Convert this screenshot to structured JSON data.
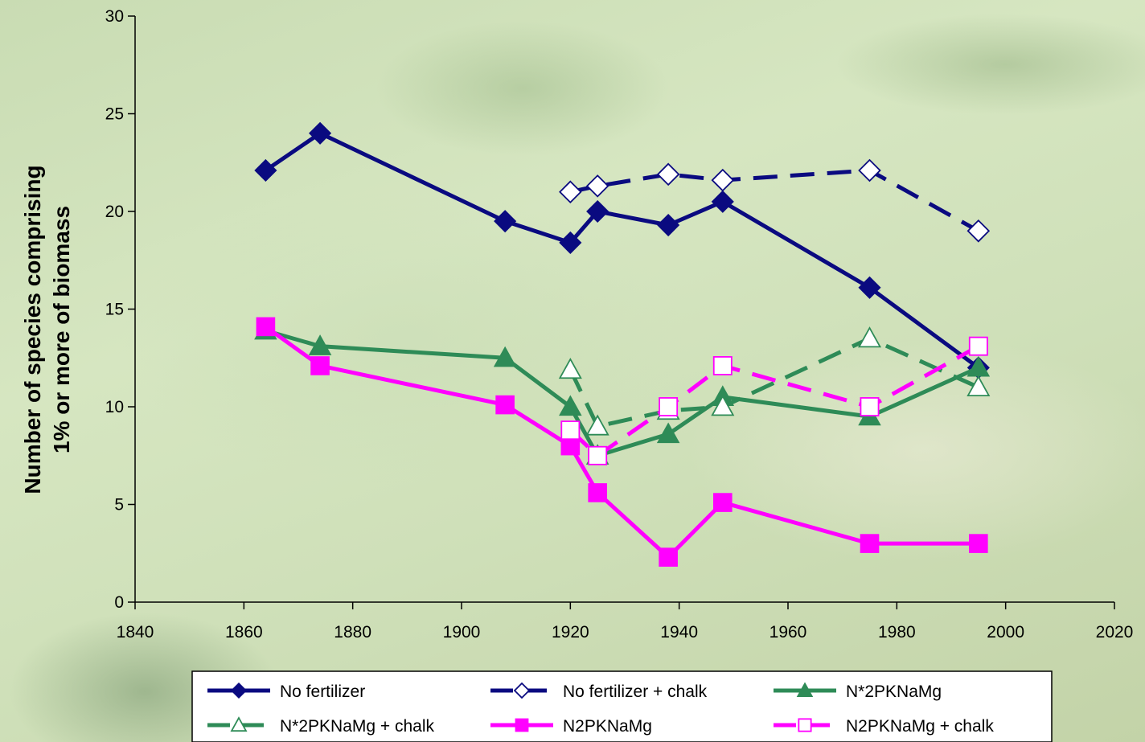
{
  "chart_data": {
    "type": "line",
    "title": "",
    "xlabel": "",
    "ylabel_lines": [
      "Number of species comprising",
      "1% or more of biomass"
    ],
    "xlim": [
      1840,
      2020
    ],
    "ylim": [
      0,
      30
    ],
    "x_ticks": [
      1840,
      1860,
      1880,
      1900,
      1920,
      1940,
      1960,
      1980,
      2000,
      2020
    ],
    "y_ticks": [
      0,
      5,
      10,
      15,
      20,
      25,
      30
    ],
    "grid": false,
    "legend_position": "bottom",
    "series": [
      {
        "name": "No fertilizer",
        "color": "#0a0a80",
        "dash": "solid",
        "marker": "diamond",
        "filled": true,
        "points": [
          [
            1864,
            22.1
          ],
          [
            1874,
            24
          ],
          [
            1908,
            19.5
          ],
          [
            1920,
            18.4
          ],
          [
            1925,
            20
          ],
          [
            1938,
            19.3
          ],
          [
            1948,
            20.5
          ],
          [
            1975,
            16.1
          ],
          [
            1995,
            12
          ]
        ]
      },
      {
        "name": "No fertilizer + chalk",
        "color": "#0a0a80",
        "dash": "dashed",
        "marker": "diamond",
        "filled": false,
        "points": [
          [
            1920,
            21
          ],
          [
            1925,
            21.3
          ],
          [
            1938,
            21.9
          ],
          [
            1948,
            21.6
          ],
          [
            1975,
            22.1
          ],
          [
            1995,
            19
          ]
        ]
      },
      {
        "name": "N*2PKNaMg",
        "color": "#2e8b57",
        "dash": "solid",
        "marker": "triangle",
        "filled": true,
        "points": [
          [
            1864,
            13.9
          ],
          [
            1874,
            13.1
          ],
          [
            1908,
            12.5
          ],
          [
            1920,
            10
          ],
          [
            1925,
            7.5
          ],
          [
            1938,
            8.6
          ],
          [
            1948,
            10.5
          ],
          [
            1975,
            9.5
          ],
          [
            1995,
            12
          ]
        ]
      },
      {
        "name": "N*2PKNaMg + chalk",
        "color": "#2e8b57",
        "dash": "dashed",
        "marker": "triangle",
        "filled": false,
        "points": [
          [
            1920,
            11.9
          ],
          [
            1925,
            9
          ],
          [
            1938,
            9.8
          ],
          [
            1948,
            10
          ],
          [
            1975,
            13.5
          ],
          [
            1995,
            11
          ]
        ]
      },
      {
        "name": "N2PKNaMg",
        "color": "#ff00ff",
        "dash": "solid",
        "marker": "square",
        "filled": true,
        "points": [
          [
            1864,
            14.1
          ],
          [
            1874,
            12.1
          ],
          [
            1908,
            10.1
          ],
          [
            1920,
            8
          ],
          [
            1925,
            5.6
          ],
          [
            1938,
            2.3
          ],
          [
            1948,
            5.1
          ],
          [
            1975,
            3
          ],
          [
            1995,
            3
          ]
        ]
      },
      {
        "name": "N2PKNaMg + chalk",
        "color": "#ff00ff",
        "dash": "dashed",
        "marker": "square",
        "filled": false,
        "points": [
          [
            1920,
            8.8
          ],
          [
            1925,
            7.5
          ],
          [
            1938,
            10
          ],
          [
            1948,
            12.1
          ],
          [
            1975,
            10
          ],
          [
            1995,
            13.1
          ]
        ]
      }
    ]
  }
}
